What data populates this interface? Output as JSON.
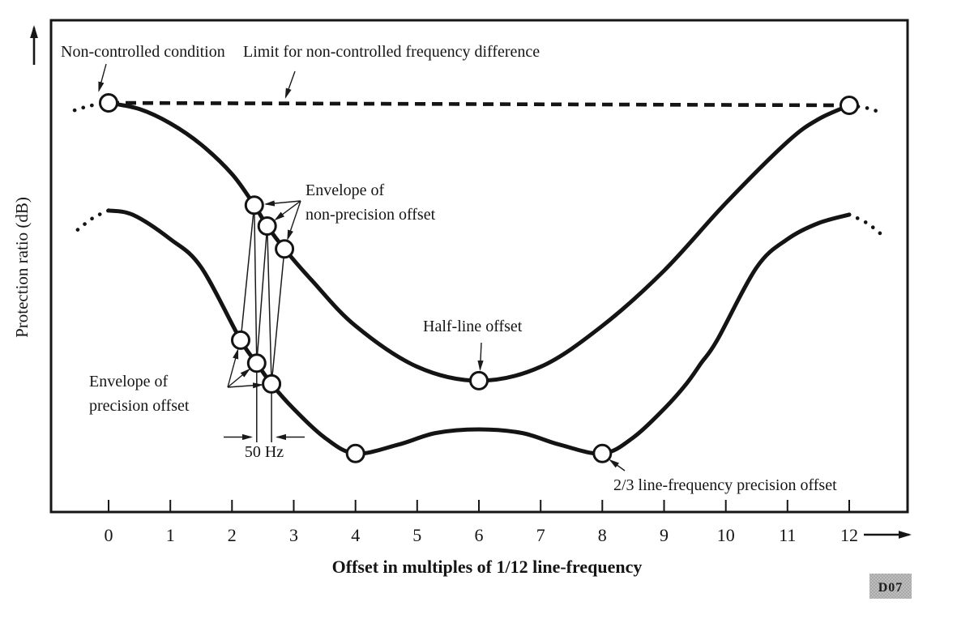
{
  "figure": {
    "y_axis_label": "Protection ratio (dB)",
    "x_axis_label": "Offset in multiples of 1/12 line-frequency",
    "badge": "D07",
    "annotations": {
      "non_controlled": "Non-controlled condition",
      "limit": "Limit for non-controlled frequency difference",
      "envelope_non_precision": [
        "Envelope of",
        "non-precision offset"
      ],
      "envelope_precision": [
        "Envelope of",
        "precision offset"
      ],
      "half_line": "Half-line offset",
      "fifty_hz": "50 Hz",
      "two_thirds": "2/3 line-frequency precision offset"
    }
  },
  "chart_data": {
    "type": "line",
    "title": "",
    "xlabel": "Offset in multiples of 1/12 line-frequency",
    "ylabel": "Protection ratio (dB)",
    "x_range": [
      0,
      12
    ],
    "x_tick_values": [
      0,
      1,
      2,
      3,
      4,
      5,
      6,
      7,
      8,
      9,
      10,
      11,
      12
    ],
    "x_tick_labels": [
      "0",
      "1",
      "2",
      "3",
      "4",
      "5",
      "6",
      "7",
      "8",
      "9",
      "10",
      "11",
      "12"
    ],
    "y_unit": "relative level (0 = x-axis, 1 = non-controlled limit line); no numeric y ticks shown in figure",
    "grid": false,
    "series": [
      {
        "id": "limit",
        "name": "Limit for non-controlled frequency difference",
        "style": "dashed",
        "points": [
          [
            0,
            1.0
          ],
          [
            12,
            0.994
          ]
        ]
      },
      {
        "id": "upper",
        "name": "Envelope of non-precision offset",
        "style": "solid",
        "points": [
          [
            0,
            1.0
          ],
          [
            0.5,
            0.985
          ],
          [
            1,
            0.95
          ],
          [
            1.5,
            0.898
          ],
          [
            2,
            0.826
          ],
          [
            2.36,
            0.75
          ],
          [
            2.57,
            0.699
          ],
          [
            2.85,
            0.643
          ],
          [
            3.3,
            0.565
          ],
          [
            4,
            0.455
          ],
          [
            5,
            0.355
          ],
          [
            6,
            0.321
          ],
          [
            7,
            0.355
          ],
          [
            8,
            0.455
          ],
          [
            9,
            0.59
          ],
          [
            10,
            0.755
          ],
          [
            11,
            0.905
          ],
          [
            11.5,
            0.96
          ],
          [
            12,
            0.994
          ]
        ]
      },
      {
        "id": "lower",
        "name": "Envelope of precision offset",
        "style": "solid",
        "points": [
          [
            0,
            0.737
          ],
          [
            0.4,
            0.726
          ],
          [
            1,
            0.667
          ],
          [
            1.5,
            0.598
          ],
          [
            2.14,
            0.42
          ],
          [
            2.4,
            0.364
          ],
          [
            2.64,
            0.313
          ],
          [
            3,
            0.252
          ],
          [
            3.5,
            0.182
          ],
          [
            4,
            0.143
          ],
          [
            4.7,
            0.165
          ],
          [
            5.3,
            0.193
          ],
          [
            6,
            0.202
          ],
          [
            6.7,
            0.193
          ],
          [
            7.3,
            0.165
          ],
          [
            8,
            0.143
          ],
          [
            8.5,
            0.182
          ],
          [
            9,
            0.252
          ],
          [
            9.36,
            0.313
          ],
          [
            9.6,
            0.364
          ],
          [
            9.86,
            0.42
          ],
          [
            10.5,
            0.598
          ],
          [
            11,
            0.667
          ],
          [
            11.5,
            0.706
          ],
          [
            12,
            0.727
          ]
        ]
      },
      {
        "id": "upper_ext_left",
        "name": "upper envelope continuation (dotted)",
        "style": "dotted",
        "points": [
          [
            -0.55,
            0.982
          ],
          [
            -0.3,
            0.993
          ],
          [
            0,
            1.0
          ]
        ]
      },
      {
        "id": "upper_ext_right",
        "name": "upper envelope continuation (dotted)",
        "style": "dotted",
        "points": [
          [
            12,
            0.994
          ],
          [
            12.3,
            0.987
          ],
          [
            12.55,
            0.974
          ]
        ]
      },
      {
        "id": "lower_ext_left",
        "name": "lower envelope continuation (dotted)",
        "style": "dotted",
        "points": [
          [
            -0.5,
            0.69
          ],
          [
            -0.25,
            0.719
          ],
          [
            0,
            0.737
          ]
        ]
      },
      {
        "id": "lower_ext_right",
        "name": "lower envelope continuation (dotted)",
        "style": "dotted",
        "points": [
          [
            12,
            0.727
          ],
          [
            12.3,
            0.705
          ],
          [
            12.6,
            0.668
          ]
        ]
      }
    ],
    "markers": [
      {
        "id": "non_controlled",
        "x": 0,
        "y_rel": 1.0,
        "label": "Non-controlled condition"
      },
      {
        "id": "limit_right",
        "x": 12,
        "y_rel": 0.994
      },
      {
        "id": "U1",
        "x": 2.36,
        "y_rel": 0.75
      },
      {
        "id": "U2",
        "x": 2.57,
        "y_rel": 0.699
      },
      {
        "id": "U3",
        "x": 2.85,
        "y_rel": 0.643
      },
      {
        "id": "L1",
        "x": 2.14,
        "y_rel": 0.42
      },
      {
        "id": "L2",
        "x": 2.4,
        "y_rel": 0.364
      },
      {
        "id": "L3",
        "x": 2.64,
        "y_rel": 0.313
      },
      {
        "id": "half_line",
        "x": 6,
        "y_rel": 0.321,
        "label": "Half-line offset"
      },
      {
        "id": "min_4",
        "x": 4,
        "y_rel": 0.143
      },
      {
        "id": "two_thirds",
        "x": 8,
        "y_rel": 0.143,
        "label": "2/3 line-frequency precision offset"
      }
    ],
    "oscillation_links": [
      [
        "U1",
        "L1"
      ],
      [
        "U1",
        "L2"
      ],
      [
        "U2",
        "L2"
      ],
      [
        "U2",
        "L3"
      ],
      [
        "U3",
        "L3"
      ]
    ],
    "dimension": {
      "label": "50 Hz",
      "between": [
        "L2",
        "L3"
      ]
    },
    "legend_position": "none"
  }
}
